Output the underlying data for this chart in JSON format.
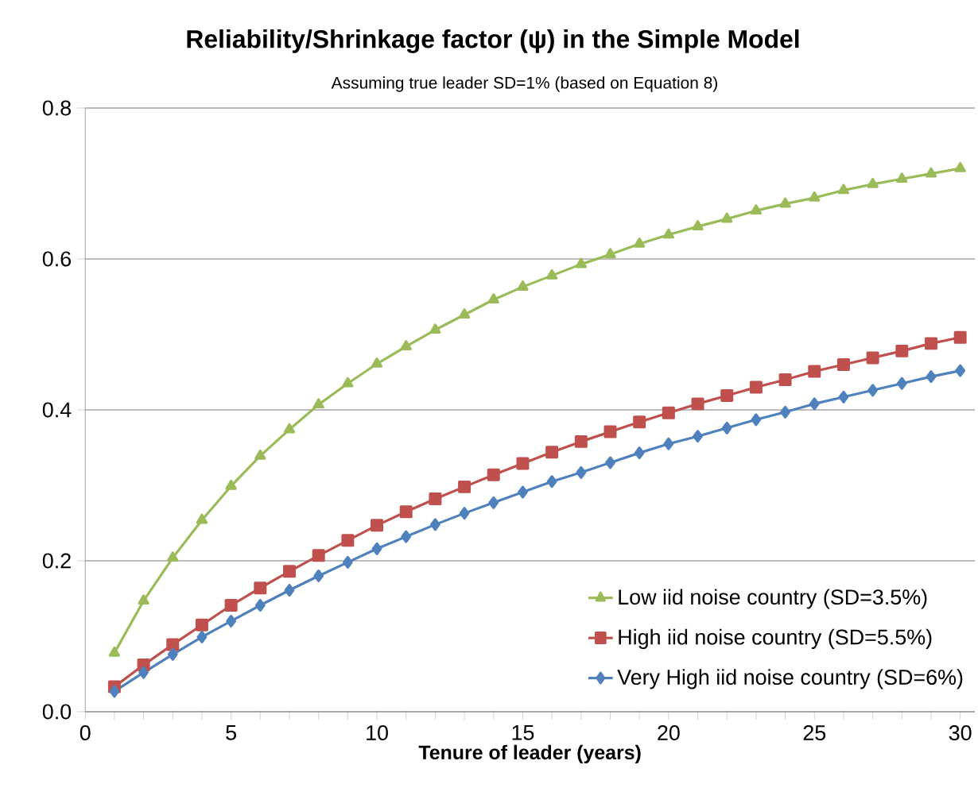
{
  "chart_data": {
    "type": "line",
    "title": "Reliability/Shrinkage factor (ψ) in the Simple Model",
    "subtitle": "Assuming true leader SD=1% (based on Equation 8)",
    "xlabel": "Tenure of leader (years)",
    "x": [
      1,
      2,
      3,
      4,
      5,
      6,
      7,
      8,
      9,
      10,
      11,
      12,
      13,
      14,
      15,
      16,
      17,
      18,
      19,
      20,
      21,
      22,
      23,
      24,
      25,
      26,
      27,
      28,
      29,
      30
    ],
    "xlim": [
      0,
      30.5
    ],
    "xticks": [
      0,
      5,
      10,
      15,
      20,
      25,
      30
    ],
    "ylim": [
      0,
      0.8
    ],
    "yticks": [
      {
        "value": 0,
        "label": "0.0"
      },
      {
        "value": 0.2,
        "label": "0.2"
      },
      {
        "value": 0.4,
        "label": "0.4"
      },
      {
        "value": 0.6,
        "label": "0.6"
      },
      {
        "value": 0.8,
        "label": "0.8"
      }
    ],
    "grid": "y",
    "legend": "bottom right",
    "line_style": "solid",
    "series": [
      {
        "name": "Low iid noise country (SD=3.5%)",
        "color": "#9bbb59",
        "marker": "triangle",
        "values": [
          0.078,
          0.147,
          0.204,
          0.254,
          0.299,
          0.339,
          0.374,
          0.407,
          0.435,
          0.461,
          0.484,
          0.506,
          0.526,
          0.546,
          0.563,
          0.578,
          0.593,
          0.606,
          0.62,
          0.632,
          0.643,
          0.653,
          0.664,
          0.673,
          0.681,
          0.691,
          0.699,
          0.706,
          0.713,
          0.72
        ]
      },
      {
        "name": "High iid noise country (SD=5.5%)",
        "color": "#c0504d",
        "marker": "square",
        "values": [
          0.033,
          0.062,
          0.089,
          0.115,
          0.141,
          0.164,
          0.186,
          0.207,
          0.227,
          0.247,
          0.265,
          0.282,
          0.298,
          0.314,
          0.329,
          0.344,
          0.358,
          0.371,
          0.384,
          0.396,
          0.408,
          0.419,
          0.43,
          0.44,
          0.451,
          0.46,
          0.469,
          0.478,
          0.488,
          0.496
        ]
      },
      {
        "name": "Very High iid noise country (SD=6%)",
        "color": "#4f81bd",
        "marker": "diamond",
        "values": [
          0.027,
          0.052,
          0.076,
          0.099,
          0.12,
          0.141,
          0.161,
          0.18,
          0.198,
          0.216,
          0.232,
          0.248,
          0.263,
          0.277,
          0.291,
          0.305,
          0.317,
          0.33,
          0.343,
          0.355,
          0.365,
          0.376,
          0.387,
          0.397,
          0.408,
          0.417,
          0.426,
          0.435,
          0.444,
          0.452
        ]
      }
    ]
  }
}
